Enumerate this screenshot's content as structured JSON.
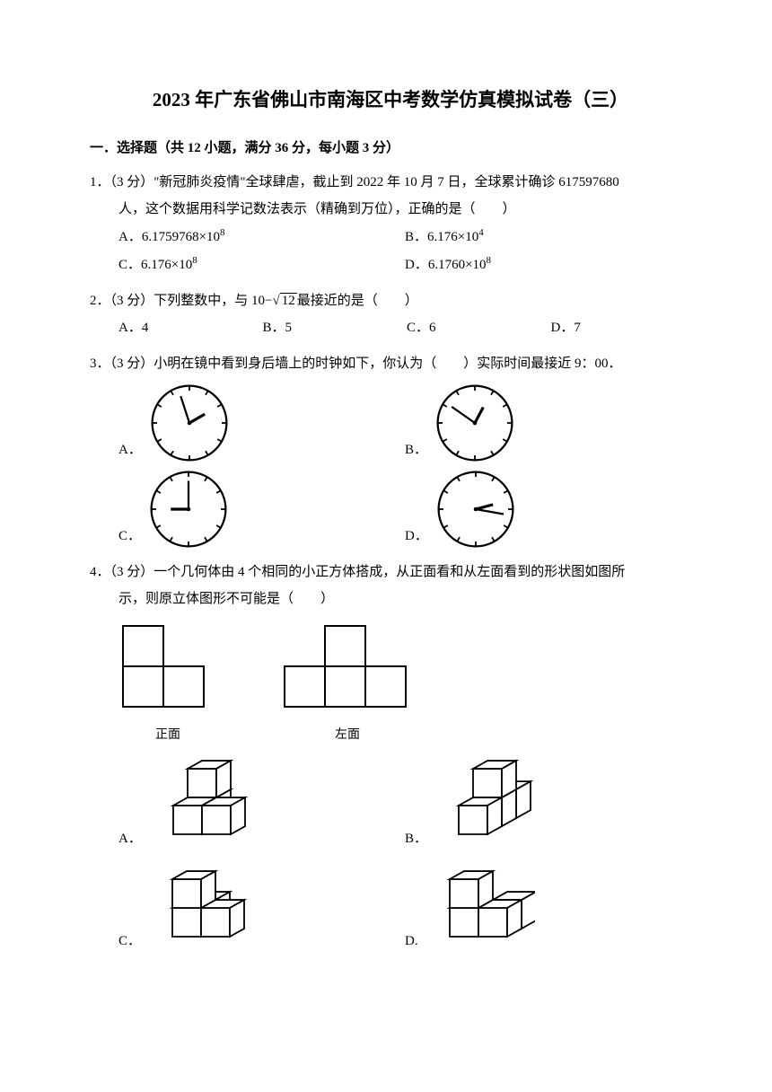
{
  "title": "2023 年广东省佛山市南海区中考数学仿真模拟试卷（三）",
  "section1": {
    "heading": "一．选择题（共 12 小题，满分 36 分，每小题 3 分）"
  },
  "q1": {
    "line1": "1．（3 分）\"新冠肺炎疫情\"全球肆虐，截止到 2022 年 10 月 7 日，全球累计确诊 617597680",
    "line2": "人，这个数据用科学记数法表示（精确到万位），正确的是（　　）",
    "optA": "A．6.1759768×10",
    "optA_sup": "8",
    "optB": "B．6.176×10",
    "optB_sup": "4",
    "optC": "C．6.176×10",
    "optC_sup": "8",
    "optD": "D．6.1760×10",
    "optD_sup": "8"
  },
  "q2": {
    "text": "2．（3 分）下列整数中，与 10−√",
    "sqrt": "12",
    "text2": "最接近的是（　　）",
    "optA": "A．4",
    "optB": "B．5",
    "optC": "C．6",
    "optD": "D．7"
  },
  "q3": {
    "text": "3．（3 分）小明在镜中看到身后墙上的时钟如下，你认为（　　）实际时间最接近 9：00．",
    "optA": "A．",
    "optB": "B．",
    "optC": "C．",
    "optD": "D．",
    "clocks": {
      "A": {
        "hour_angle": 60,
        "min_angle": -18
      },
      "B": {
        "hour_angle": 28,
        "min_angle": -55
      },
      "C": {
        "hour_angle": -90,
        "min_angle": 0
      },
      "D": {
        "hour_angle": 75,
        "min_angle": 100
      }
    }
  },
  "q4": {
    "line1": "4．（3 分）一个几何体由 4 个相同的小正方体搭成，从正面看和从左面看到的形状图如图所",
    "line2": "示，则原立体图形不可能是（　　）",
    "view_front": "正面",
    "view_left": "左面",
    "optA": "A．",
    "optB": "B．",
    "optC": "C．",
    "optD": "D."
  },
  "colors": {
    "text": "#000000",
    "bg": "#ffffff",
    "stroke": "#000000"
  }
}
